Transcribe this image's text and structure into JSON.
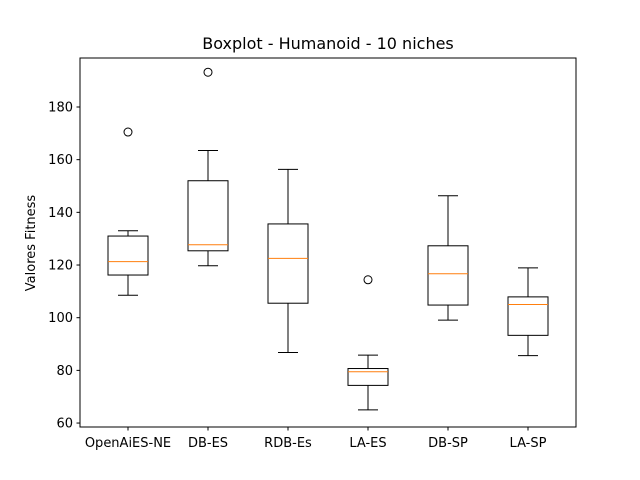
{
  "chart_data": {
    "type": "boxplot",
    "title": "Boxplot - Humanoid - 10 niches",
    "xlabel": "",
    "ylabel": "Valores Fitness",
    "ylim": [
      58.5,
      198.6
    ],
    "yticks": [
      60,
      80,
      100,
      120,
      140,
      160,
      180
    ],
    "grid": false,
    "categories": [
      "OpenAiES-NE",
      "DB-ES",
      "RDB-Es",
      "LA-ES",
      "DB-SP",
      "LA-SP"
    ],
    "boxes": [
      {
        "whisker_low": 108.5,
        "q1": 116.2,
        "median": 121.3,
        "q3": 131.0,
        "whisker_high": 133.0,
        "outliers": [
          170.5
        ]
      },
      {
        "whisker_low": 119.7,
        "q1": 125.4,
        "median": 127.7,
        "q3": 152.0,
        "whisker_high": 163.5,
        "outliers": [
          193.2
        ]
      },
      {
        "whisker_low": 86.8,
        "q1": 105.5,
        "median": 122.5,
        "q3": 135.6,
        "whisker_high": 156.3,
        "outliers": []
      },
      {
        "whisker_low": 65.0,
        "q1": 74.3,
        "median": 79.5,
        "q3": 80.7,
        "whisker_high": 85.8,
        "outliers": [
          114.4
        ]
      },
      {
        "whisker_low": 99.1,
        "q1": 104.8,
        "median": 116.7,
        "q3": 127.3,
        "whisker_high": 146.3,
        "outliers": []
      },
      {
        "whisker_low": 85.6,
        "q1": 93.3,
        "median": 105.0,
        "q3": 107.9,
        "whisker_high": 118.9,
        "outliers": []
      }
    ],
    "colors": {
      "box": "#000000",
      "median": "#ff7f0e",
      "background": "#ffffff"
    }
  }
}
